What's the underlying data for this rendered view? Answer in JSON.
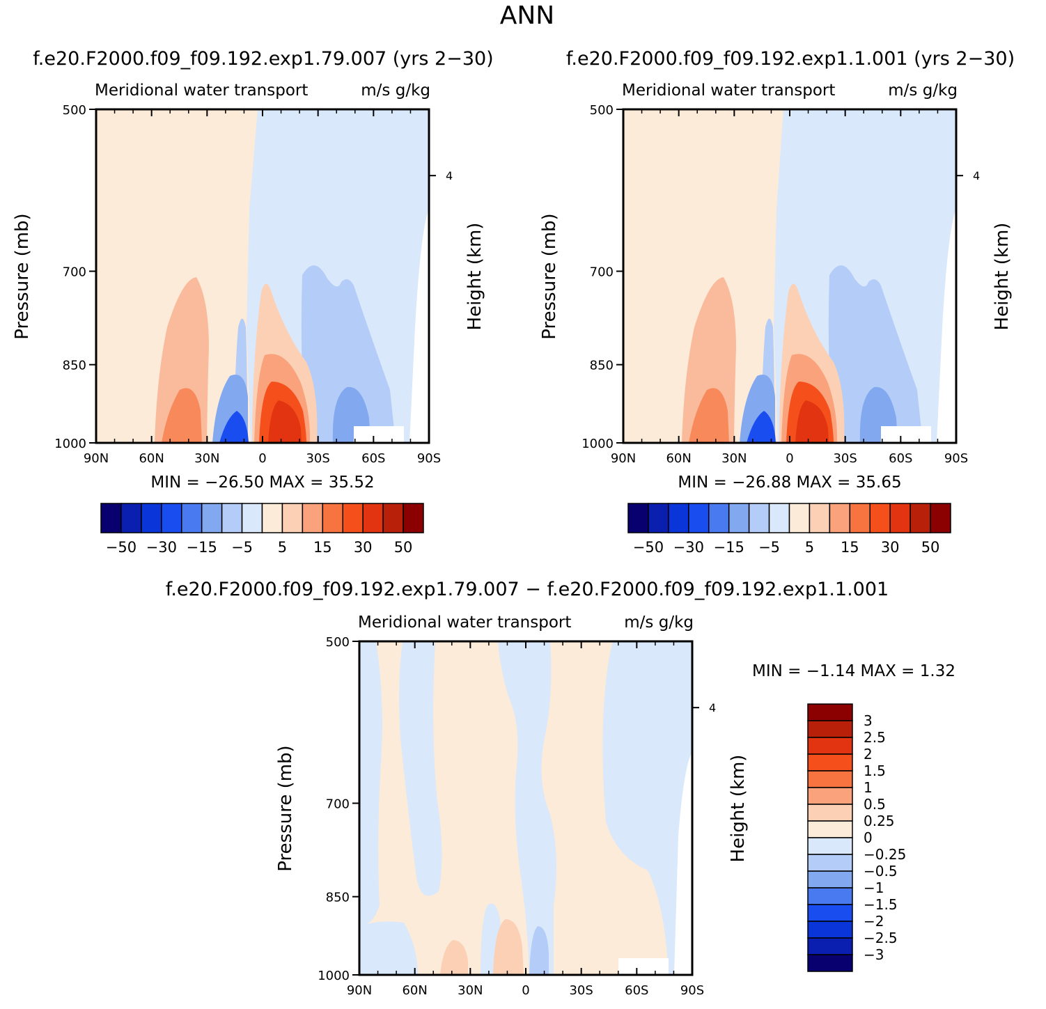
{
  "page_title": "ANN",
  "palette": {
    "blue_to_red": [
      "#08006f",
      "#0a1fb0",
      "#0a35d9",
      "#1a4df0",
      "#4a7af0",
      "#82a8f0",
      "#b4ccf8",
      "#d9e8fb",
      "#fdebd9",
      "#fcd0b5",
      "#f9a27c",
      "#f7733f",
      "#f5501c",
      "#e23410",
      "#b82009",
      "#8b0000"
    ],
    "background": "#ffffff"
  },
  "chart_data": [
    {
      "type": "heatmap",
      "id": "panel1",
      "header": "f.e20.F2000.f09_f09.192.exp1.79.007 (yrs 2−30)",
      "title_left": "Meridional water transport",
      "title_right": "m/s g/kg",
      "ylabel": "Pressure (mb)",
      "ylabel_right": "Height (km)",
      "x_ticks": [
        "90N",
        "60N",
        "30N",
        "0",
        "30S",
        "60S",
        "90S"
      ],
      "y_ticks": [
        "500",
        "700",
        "850",
        "1000"
      ],
      "right_ticks": [
        "4"
      ],
      "ylim": [
        1000,
        500
      ],
      "stats": "MIN = −26.50   MAX =   35.52",
      "colorbar_labels": [
        "−50",
        "−30",
        "−15",
        "−5",
        "5",
        "15",
        "30",
        "50"
      ],
      "colorbar_levels": [
        -60,
        -50,
        -40,
        -30,
        -20,
        -15,
        -10,
        -5,
        0,
        5,
        10,
        15,
        20,
        30,
        40,
        50,
        60
      ],
      "min": -26.5,
      "max": 35.52
    },
    {
      "type": "heatmap",
      "id": "panel2",
      "header": "f.e20.F2000.f09_f09.192.exp1.1.001 (yrs 2−30)",
      "title_left": "Meridional water transport",
      "title_right": "m/s g/kg",
      "ylabel": "Pressure (mb)",
      "ylabel_right": "Height (km)",
      "x_ticks": [
        "90N",
        "60N",
        "30N",
        "0",
        "30S",
        "60S",
        "90S"
      ],
      "y_ticks": [
        "500",
        "700",
        "850",
        "1000"
      ],
      "right_ticks": [
        "4"
      ],
      "ylim": [
        1000,
        500
      ],
      "stats": "MIN = −26.88   MAX =   35.65",
      "colorbar_labels": [
        "−50",
        "−30",
        "−15",
        "−5",
        "5",
        "15",
        "30",
        "50"
      ],
      "colorbar_levels": [
        -60,
        -50,
        -40,
        -30,
        -20,
        -15,
        -10,
        -5,
        0,
        5,
        10,
        15,
        20,
        30,
        40,
        50,
        60
      ],
      "min": -26.88,
      "max": 35.65
    },
    {
      "type": "heatmap",
      "id": "panel3",
      "header": "f.e20.F2000.f09_f09.192.exp1.79.007 − f.e20.F2000.f09_f09.192.exp1.1.001",
      "title_left": "Meridional water transport",
      "title_right": "m/s g/kg",
      "ylabel": "Pressure (mb)",
      "ylabel_right": "Height (km)",
      "x_ticks": [
        "90N",
        "60N",
        "30N",
        "0",
        "30S",
        "60S",
        "90S"
      ],
      "y_ticks": [
        "500",
        "700",
        "850",
        "1000"
      ],
      "right_ticks": [
        "4"
      ],
      "ylim": [
        1000,
        500
      ],
      "stats": "MIN =   −1.14   MAX =    1.32",
      "colorbar_labels": [
        "3",
        "2.5",
        "2",
        "1.5",
        "1",
        "0.5",
        "0.25",
        "0",
        "−0.25",
        "−0.5",
        "−1",
        "−1.5",
        "−2",
        "−2.5",
        "−3"
      ],
      "min": -1.14,
      "max": 1.32
    }
  ]
}
